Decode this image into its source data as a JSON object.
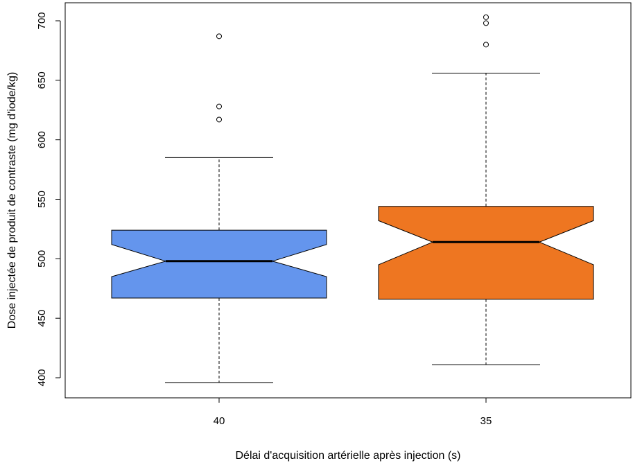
{
  "chart_data": {
    "type": "boxplot",
    "notched": true,
    "title": "",
    "xlabel": "Délai d'acquisition artérielle après injection (s)",
    "ylabel": "Dose injectée de produit de contraste (mg d'iode/kg)",
    "ylim": [
      385,
      715
    ],
    "yticks": [
      400,
      450,
      500,
      550,
      600,
      650,
      700
    ],
    "ytick_labels": [
      "400",
      "450",
      "500",
      "550",
      "600",
      "650",
      "700"
    ],
    "categories": [
      "40",
      "35"
    ],
    "boxes": [
      {
        "category": "40",
        "color": "#6495ED",
        "whisker_low": 396,
        "q1": 467,
        "notch_low": 485,
        "median": 498,
        "notch_high": 512,
        "q3": 524,
        "whisker_high": 585,
        "outliers": [
          617,
          628,
          687
        ]
      },
      {
        "category": "35",
        "color": "#EE7621",
        "whisker_low": 411,
        "q1": 466,
        "notch_low": 495,
        "median": 514,
        "notch_high": 532,
        "q3": 544,
        "whisker_high": 656,
        "outliers": [
          680,
          698,
          703
        ]
      }
    ],
    "grid": false,
    "legend": "none"
  }
}
